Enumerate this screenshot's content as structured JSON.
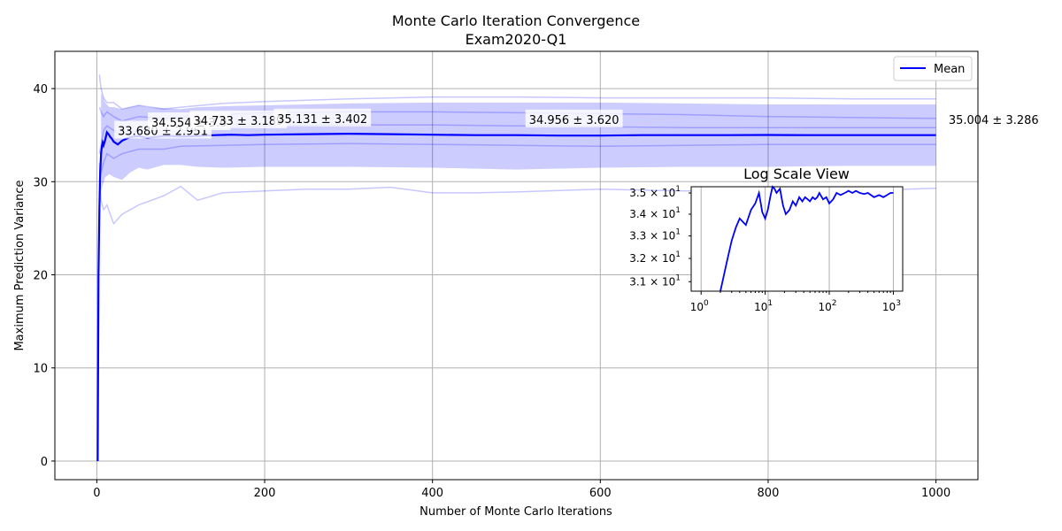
{
  "chart_data": [
    {
      "type": "line",
      "title": "Monte Carlo Iteration Convergence",
      "subtitle": "Exam2020-Q1",
      "xlabel": "Number of Monte Carlo Iterations",
      "ylabel": "Maximum Prediction Variance",
      "xlim": [
        -50,
        1050
      ],
      "ylim": [
        -2,
        44
      ],
      "xticks": [
        "0",
        "200",
        "400",
        "600",
        "800",
        "1000"
      ],
      "yticks": [
        "0",
        "10",
        "20",
        "30",
        "40"
      ],
      "grid": true,
      "legend": "top-right",
      "colors": {
        "mean": "#0000ff",
        "band": "#0000ff"
      },
      "series": [
        {
          "name": "Mean",
          "x": [
            1,
            2,
            3,
            4,
            5,
            6,
            7,
            8,
            10,
            12,
            14,
            16,
            18,
            20,
            25,
            30,
            35,
            40,
            50,
            60,
            70,
            80,
            90,
            100,
            120,
            140,
            160,
            180,
            200,
            250,
            300,
            350,
            400,
            450,
            500,
            550,
            600,
            650,
            700,
            750,
            800,
            850,
            900,
            950,
            1000
          ],
          "values": [
            0,
            20,
            27,
            31,
            33,
            33.8,
            34.2,
            33.9,
            34.5,
            35.3,
            35.1,
            34.8,
            34.6,
            34.3,
            34.0,
            34.4,
            34.6,
            34.8,
            34.9,
            34.7,
            34.8,
            34.9,
            34.9,
            34.85,
            34.9,
            35.0,
            35.05,
            35.0,
            35.05,
            35.1,
            35.15,
            35.1,
            35.05,
            35.0,
            35.0,
            34.95,
            34.95,
            35.0,
            35.0,
            35.0,
            35.02,
            35.0,
            35.0,
            35.0,
            35.0
          ]
        }
      ],
      "band_x": [
        5,
        10,
        15,
        20,
        30,
        40,
        50,
        60,
        80,
        100,
        120,
        150,
        200,
        250,
        300,
        400,
        500,
        600,
        700,
        800,
        900,
        1000
      ],
      "band_upper": [
        39.5,
        38.5,
        38.0,
        38.0,
        37.8,
        38.0,
        38.2,
        38.0,
        37.9,
        37.8,
        38.0,
        38.1,
        38.2,
        38.3,
        38.4,
        38.5,
        38.5,
        38.5,
        38.4,
        38.3,
        38.3,
        38.3
      ],
      "band_lower": [
        29.0,
        30.5,
        30.8,
        30.5,
        30.2,
        31.0,
        31.5,
        31.3,
        31.8,
        31.8,
        31.6,
        31.5,
        31.6,
        31.6,
        31.6,
        31.5,
        31.3,
        31.5,
        31.6,
        31.6,
        31.7,
        31.7
      ],
      "traces": [
        {
          "x": [
            3,
            5,
            8,
            12,
            20,
            30,
            50,
            80,
            100,
            150,
            200,
            300,
            400,
            500,
            600,
            700,
            800,
            900,
            1000
          ],
          "values": [
            41.5,
            40.0,
            39.0,
            38.5,
            38.5,
            37.8,
            38.2,
            37.8,
            38.0,
            38.4,
            38.6,
            38.9,
            39.1,
            39.1,
            39.0,
            39.0,
            39.0,
            38.9,
            38.9
          ]
        },
        {
          "x": [
            3,
            5,
            8,
            12,
            20,
            30,
            50,
            80,
            100,
            150,
            200,
            300,
            400,
            500,
            600,
            700,
            800,
            900,
            1000
          ],
          "values": [
            38.0,
            37.5,
            37.0,
            37.5,
            37.0,
            36.5,
            37.0,
            36.8,
            37.0,
            37.2,
            37.4,
            37.5,
            37.5,
            37.4,
            37.3,
            37.2,
            37.0,
            36.9,
            36.8
          ]
        },
        {
          "x": [
            3,
            5,
            8,
            12,
            20,
            30,
            50,
            80,
            100,
            150,
            200,
            300,
            400,
            500,
            600,
            700,
            800,
            900,
            1000
          ],
          "values": [
            33.0,
            34.0,
            35.5,
            36.0,
            35.5,
            35.0,
            35.5,
            35.8,
            35.6,
            35.8,
            36.0,
            36.1,
            36.1,
            36.0,
            35.9,
            35.8,
            35.8,
            35.8,
            35.8
          ]
        },
        {
          "x": [
            3,
            5,
            8,
            12,
            20,
            30,
            50,
            80,
            100,
            150,
            200,
            300,
            400,
            500,
            600,
            700,
            800,
            900,
            1000
          ],
          "values": [
            30.0,
            31.0,
            32.0,
            33.0,
            32.5,
            33.0,
            33.5,
            33.5,
            33.8,
            33.9,
            34.0,
            34.1,
            34.0,
            33.9,
            33.8,
            33.9,
            34.0,
            34.0,
            34.0
          ]
        },
        {
          "x": [
            3,
            5,
            8,
            12,
            20,
            30,
            50,
            80,
            100,
            120,
            150,
            200,
            250,
            300,
            350,
            400,
            450,
            500,
            600,
            700,
            800,
            900,
            1000
          ],
          "values": [
            32.0,
            28.0,
            27.0,
            27.5,
            25.5,
            26.5,
            27.5,
            28.5,
            29.5,
            28.0,
            28.8,
            29.0,
            29.2,
            29.2,
            29.4,
            28.8,
            28.8,
            28.9,
            29.2,
            29.0,
            29.1,
            29.0,
            29.3
          ]
        }
      ],
      "annotations": [
        {
          "text": "33.680 ± 2.951",
          "x": 25,
          "y": 35.4
        },
        {
          "text": "34.554 ± 3.0",
          "x": 65,
          "y": 36.3
        },
        {
          "text": "34.733 ± 3.189",
          "x": 115,
          "y": 36.5
        },
        {
          "text": "35.131 ± 3.402",
          "x": 215,
          "y": 36.7
        },
        {
          "text": "34.956 ± 3.620",
          "x": 515,
          "y": 36.6
        },
        {
          "text": "35.004 ± 3.286",
          "x": 1015,
          "y": 36.6
        }
      ]
    },
    {
      "type": "line",
      "title": "Log Scale View",
      "x_scale": "log",
      "y_scale": "log",
      "xlim": [
        0.7,
        1400
      ],
      "ylim": [
        30.6,
        35.3
      ],
      "xticks": [
        {
          "value": 1,
          "base": "10",
          "exp": "0"
        },
        {
          "value": 10,
          "base": "10",
          "exp": "1"
        },
        {
          "value": 100,
          "base": "10",
          "exp": "2"
        },
        {
          "value": 1000,
          "base": "10",
          "exp": "3"
        }
      ],
      "yticks": [
        {
          "value": 31,
          "mant": "3.1 × 10",
          "exp": "1"
        },
        {
          "value": 32,
          "mant": "3.2 × 10",
          "exp": "1"
        },
        {
          "value": 33,
          "mant": "3.3 × 10",
          "exp": "1"
        },
        {
          "value": 34,
          "mant": "3.4 × 10",
          "exp": "1"
        },
        {
          "value": 35,
          "mant": "3.5 × 10",
          "exp": "1"
        }
      ],
      "grid": true,
      "colors": {
        "line": "#0000ff"
      },
      "series": [
        {
          "x": [
            2,
            2.5,
            3,
            3.5,
            4,
            5,
            6,
            7,
            8,
            9,
            10,
            11,
            12,
            13,
            14,
            15,
            17,
            19,
            21,
            24,
            27,
            30,
            34,
            38,
            42,
            46,
            50,
            55,
            60,
            65,
            70,
            80,
            90,
            100,
            115,
            130,
            150,
            175,
            200,
            230,
            260,
            300,
            350,
            400,
            500,
            600,
            700,
            800,
            900,
            1000
          ],
          "values": [
            30.6,
            31.8,
            32.8,
            33.4,
            33.8,
            33.5,
            34.2,
            34.5,
            35.0,
            34.1,
            33.8,
            34.2,
            34.8,
            35.3,
            35.2,
            35.0,
            35.2,
            34.4,
            34.0,
            34.2,
            34.6,
            34.4,
            34.8,
            34.6,
            34.8,
            34.7,
            34.6,
            34.8,
            34.7,
            34.8,
            35.0,
            34.7,
            34.8,
            34.5,
            34.7,
            35.0,
            34.9,
            35.0,
            35.1,
            35.0,
            35.1,
            35.0,
            34.95,
            35.0,
            34.8,
            34.9,
            34.8,
            34.9,
            35.0,
            35.0
          ]
        }
      ]
    }
  ]
}
